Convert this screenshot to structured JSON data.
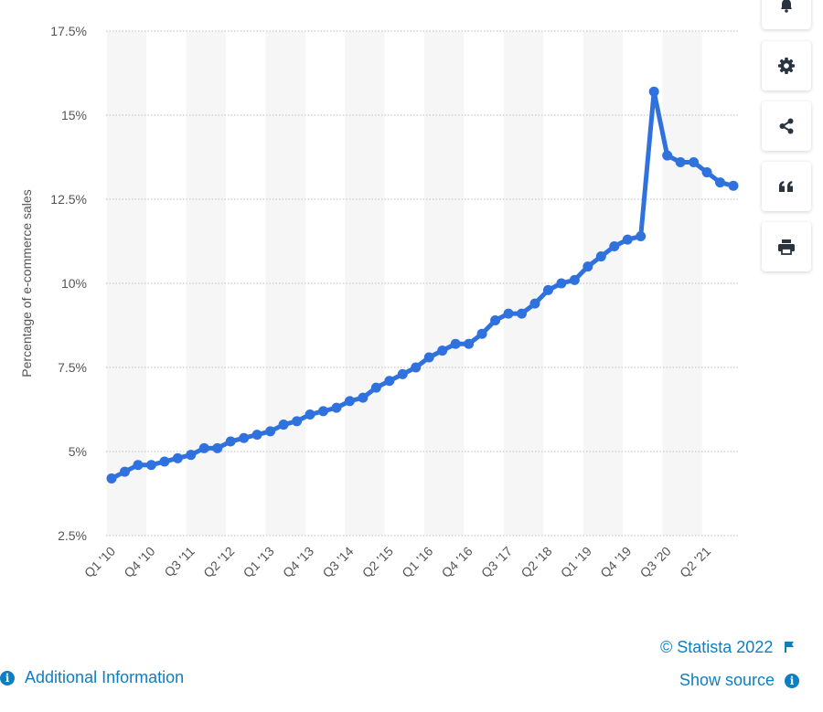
{
  "chart_data": {
    "type": "line",
    "title": "",
    "xlabel": "",
    "ylabel": "Percentage of e-commerce sales",
    "ylim": [
      2.5,
      17.5
    ],
    "yticks": [
      "2.5%",
      "5%",
      "7.5%",
      "10%",
      "12.5%",
      "15%",
      "17.5%"
    ],
    "xtick_labels": [
      "Q1 '10",
      "Q4 '10",
      "Q3 '11",
      "Q2 '12",
      "Q1 '13",
      "Q4 '13",
      "Q3 '14",
      "Q2 '15",
      "Q1 '16",
      "Q4 '16",
      "Q3 '17",
      "Q2 '18",
      "Q1 '19",
      "Q4 '19",
      "Q3 '20",
      "Q2 '21"
    ],
    "grid": true,
    "line_color": "#2f72de",
    "categories": [
      "Q1 '10",
      "Q2 '10",
      "Q3 '10",
      "Q4 '10",
      "Q1 '11",
      "Q2 '11",
      "Q3 '11",
      "Q4 '11",
      "Q1 '12",
      "Q2 '12",
      "Q3 '12",
      "Q4 '12",
      "Q1 '13",
      "Q2 '13",
      "Q3 '13",
      "Q4 '13",
      "Q1 '14",
      "Q2 '14",
      "Q3 '14",
      "Q4 '14",
      "Q1 '15",
      "Q2 '15",
      "Q3 '15",
      "Q4 '15",
      "Q1 '16",
      "Q2 '16",
      "Q3 '16",
      "Q4 '16",
      "Q1 '17",
      "Q2 '17",
      "Q3 '17",
      "Q4 '17",
      "Q1 '18",
      "Q2 '18",
      "Q3 '18",
      "Q4 '18",
      "Q1 '19",
      "Q2 '19",
      "Q3 '19",
      "Q4 '19",
      "Q1 '20",
      "Q2 '20",
      "Q3 '20",
      "Q4 '20",
      "Q1 '21",
      "Q2 '21",
      "Q3 '21",
      "Q4 '21"
    ],
    "series": [
      {
        "values": [
          4.2,
          4.4,
          4.6,
          4.6,
          4.7,
          4.8,
          4.9,
          5.1,
          5.1,
          5.3,
          5.4,
          5.5,
          5.6,
          5.8,
          5.9,
          6.1,
          6.2,
          6.3,
          6.5,
          6.6,
          6.9,
          7.1,
          7.3,
          7.5,
          7.8,
          8.0,
          8.2,
          8.2,
          8.5,
          8.9,
          9.1,
          9.1,
          9.4,
          9.8,
          10.0,
          10.1,
          10.5,
          10.8,
          11.1,
          11.3,
          11.4,
          15.7,
          13.8,
          13.6,
          13.6,
          13.3,
          13.0,
          12.9
        ]
      }
    ]
  },
  "sidebar": {
    "buttons": [
      {
        "icon": "bell-icon"
      },
      {
        "icon": "gear-icon"
      },
      {
        "icon": "share-icon"
      },
      {
        "icon": "quote-icon"
      },
      {
        "icon": "print-icon"
      }
    ]
  },
  "footer": {
    "copyright": "© Statista 2022",
    "additional_info": "Additional Information",
    "show_source": "Show source"
  }
}
